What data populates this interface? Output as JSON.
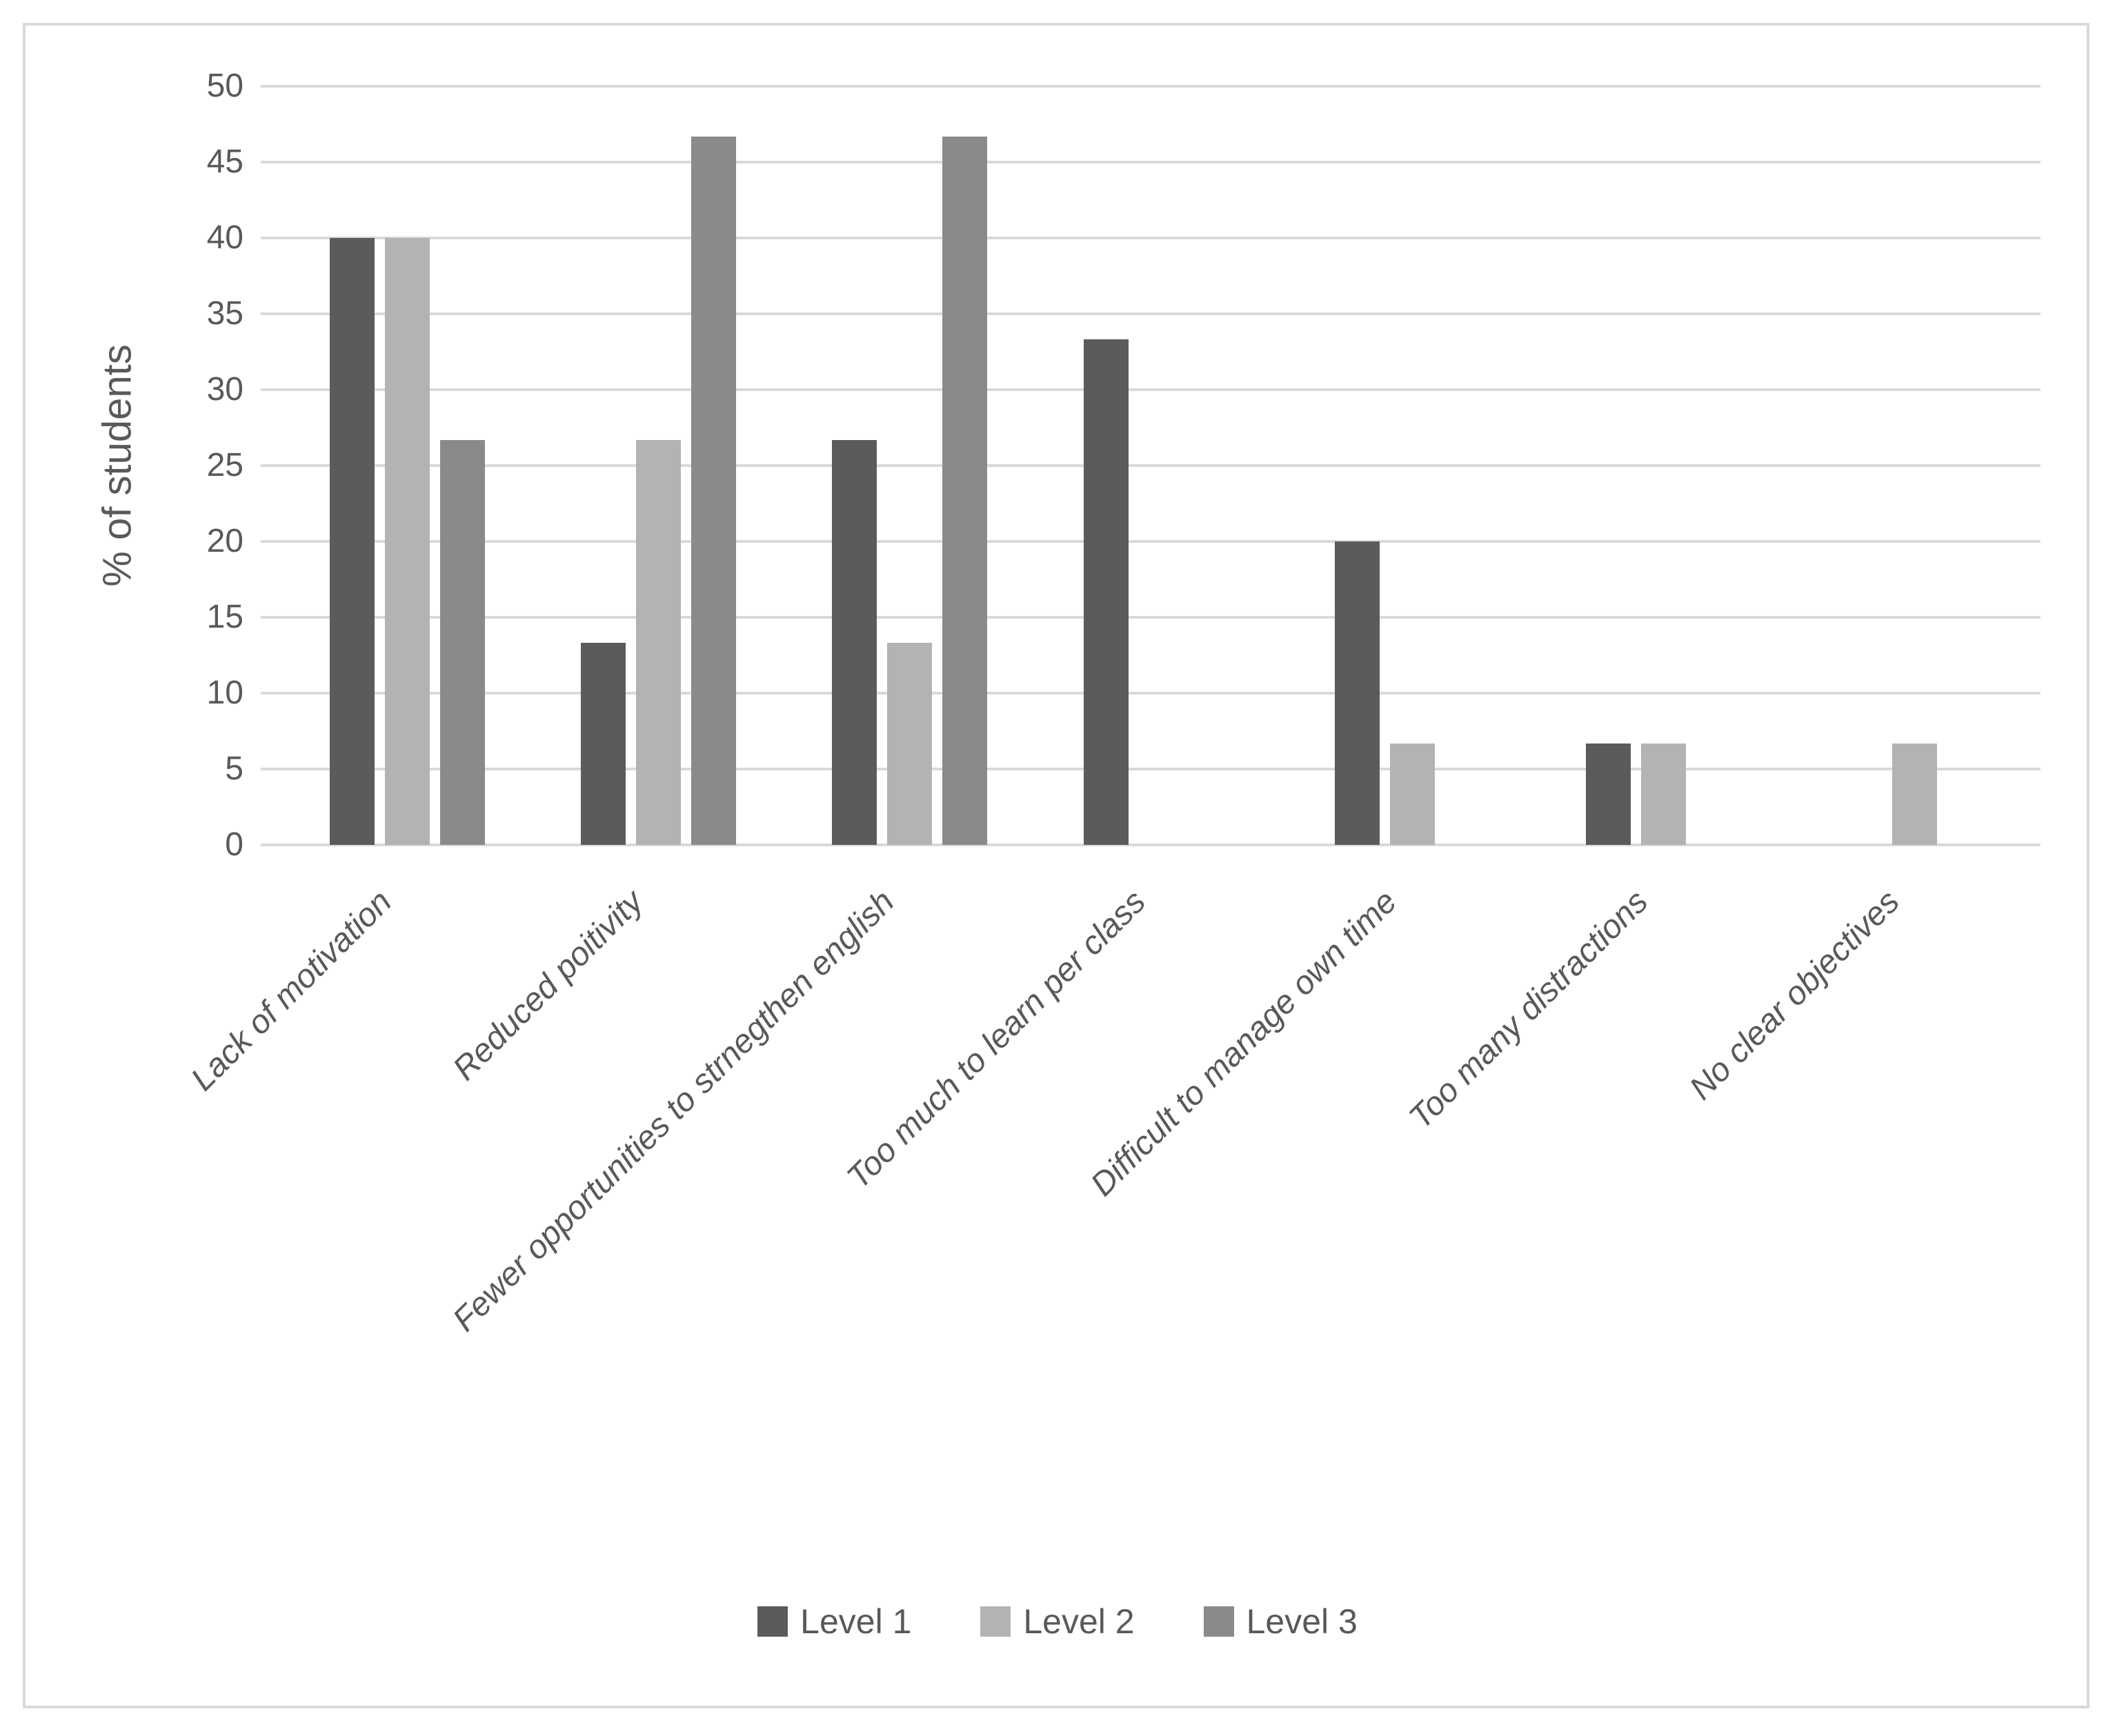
{
  "figure": {
    "background_color": "#ffffff",
    "border_color": "#d9d9d9",
    "gridline_color": "#d9d9d9",
    "text_color": "#595959"
  },
  "chart_data": {
    "type": "bar",
    "title": "",
    "xlabel": "",
    "ylabel": "% of students",
    "ylim": [
      0,
      50
    ],
    "ytick_step": 5,
    "yticks": [
      0,
      5,
      10,
      15,
      20,
      25,
      30,
      35,
      40,
      45,
      50
    ],
    "grid": "horizontal",
    "legend_position": "bottom-center",
    "categories": [
      "Lack of motivation",
      "Reduced poitivity",
      "Fewer opportunities to strnegthen english",
      "Too much to learn per class",
      "Difficult to manage own time",
      "Too many distractions",
      "No clear objectives"
    ],
    "series": [
      {
        "name": "Level 1",
        "color": "#5b5b5b",
        "values": [
          40,
          13.3,
          26.7,
          33.3,
          20,
          6.7,
          0
        ]
      },
      {
        "name": "Level 2",
        "color": "#b3b3b3",
        "values": [
          40,
          26.7,
          13.3,
          0,
          6.7,
          6.7,
          6.7
        ]
      },
      {
        "name": "Level 3",
        "color": "#8a8a8a",
        "values": [
          26.7,
          46.7,
          46.7,
          0,
          0,
          0,
          0
        ]
      }
    ]
  }
}
